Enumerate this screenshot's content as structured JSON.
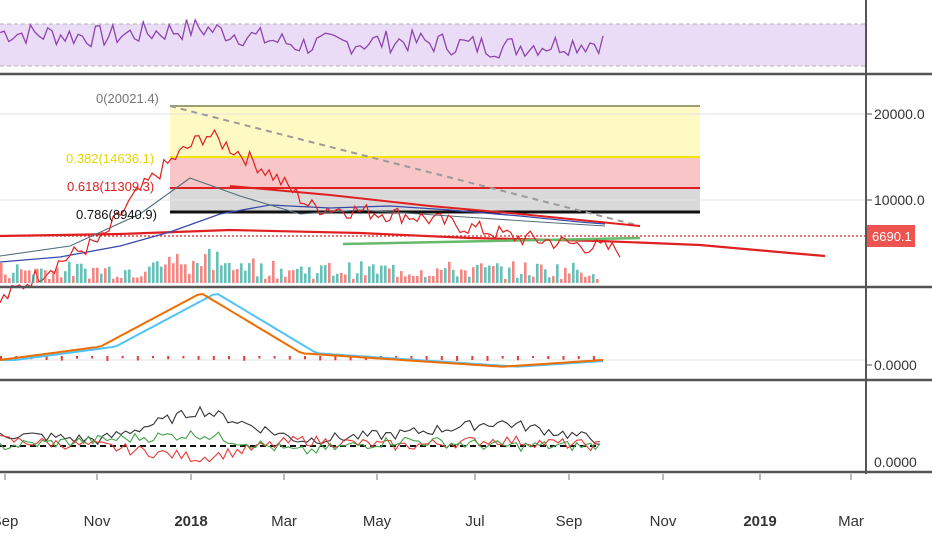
{
  "colors": {
    "rsi": "#8e44ad",
    "rsi_band": "#eadcf7",
    "fib_zero": "#9e9e72",
    "fib_0382": "#f2e600",
    "fib_0618": "#e02020",
    "fib_0786": "#111111",
    "price_line": "#e02020",
    "macd_line": "#ef6c00",
    "macd_signal": "#4fc3f7",
    "hist": "#e53935",
    "stoch_a": "#333333",
    "stoch_b": "#e53935",
    "stoch_c": "#43a047",
    "axis_text": "#333333",
    "separator": "#555555"
  },
  "price_axis": {
    "tick_20000": "20000.0",
    "tick_10000": "10000.0",
    "price_tag": "6690.1"
  },
  "macd_axis": {
    "tick_zero": "0.0000"
  },
  "stoch_axis": {
    "tick_zero": "0.0000"
  },
  "fib_labels": {
    "zero": "0(20021.4)",
    "l0382": "0.382(14636.1)",
    "l0618": "0.618(11309.3)",
    "l0786": "0.786(8940.9)"
  },
  "x_labels": [
    "Sep",
    "Nov",
    "2018",
    "Mar",
    "May",
    "Jul",
    "Sep",
    "Nov",
    "2019",
    "Mar"
  ],
  "chart_data": [
    {
      "type": "line",
      "panel": "rsi",
      "title": "",
      "x": [
        "Sep",
        "Nov",
        "2018",
        "Mar",
        "May",
        "Jul",
        "Sep"
      ],
      "series": [
        {
          "values": [
            62,
            58,
            66,
            50,
            54,
            48,
            53
          ]
        }
      ],
      "bands": [
        30,
        70
      ]
    },
    {
      "type": "line",
      "panel": "price",
      "title": "",
      "x": [
        "Sep",
        "Nov",
        "2018",
        "Mar",
        "May",
        "Jul",
        "Sep"
      ],
      "series": [
        {
          "values": [
            4400,
            7300,
            17000,
            9500,
            8800,
            7400,
            6690
          ]
        }
      ],
      "fib_levels": [
        {
          "ratio": 0,
          "price": 20021.4
        },
        {
          "ratio": 0.382,
          "price": 14636.1
        },
        {
          "ratio": 0.618,
          "price": 11309.3
        },
        {
          "ratio": 0.786,
          "price": 8940.9
        }
      ],
      "current_price": 6690.1,
      "y_ticks": [
        10000,
        20000
      ],
      "ylim": [
        3000,
        23000
      ]
    },
    {
      "type": "line",
      "panel": "macd",
      "title": "",
      "x": [
        "Sep",
        "Nov",
        "2018",
        "Mar",
        "May",
        "Jul",
        "Sep"
      ],
      "series": [
        {
          "values": [
            0.0,
            0.2,
            1.0,
            0.1,
            0.0,
            -0.1,
            0.0
          ]
        }
      ],
      "y_ticks": [
        0
      ]
    },
    {
      "type": "line",
      "panel": "stochastic",
      "title": "",
      "x": [
        "Sep",
        "Nov",
        "2018",
        "Mar",
        "May",
        "Jul",
        "Sep"
      ],
      "series": [
        {
          "values": [
            0.2,
            0.1,
            0.6,
            0.1,
            0.2,
            0.4,
            0.1
          ]
        },
        {
          "values": [
            0.1,
            0.0,
            -0.2,
            0.1,
            0.0,
            0.1,
            0.0
          ]
        },
        {
          "values": [
            0.0,
            0.1,
            0.2,
            -0.1,
            0.1,
            0.0,
            0.0
          ]
        }
      ],
      "y_ticks": [
        0
      ]
    }
  ]
}
